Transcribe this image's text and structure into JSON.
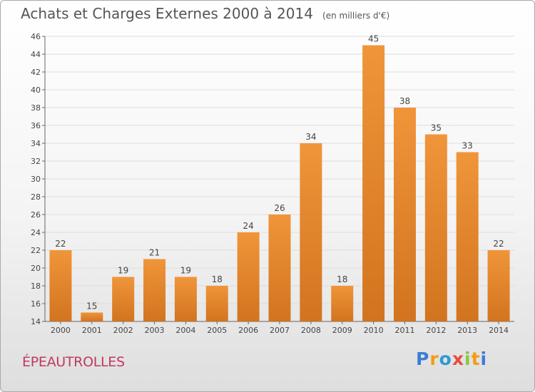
{
  "title": "Achats et Charges Externes 2000 à 2014",
  "unit_note": "(en milliers d'€)",
  "location": "ÉPEAUTROLLES",
  "brand": {
    "name": "Proxiti",
    "letters": [
      {
        "char": "P",
        "color": "#3b7dd8"
      },
      {
        "char": "r",
        "color": "#f39c12"
      },
      {
        "char": "o",
        "color": "#2e9ad0"
      },
      {
        "char": "x",
        "color": "#e74c3c"
      },
      {
        "char": "i",
        "color": "#8cc63f"
      },
      {
        "char": "t",
        "color": "#f39c12"
      },
      {
        "char": "i",
        "color": "#3b7dd8"
      }
    ]
  },
  "chart_data": {
    "type": "bar",
    "categories": [
      "2000",
      "2001",
      "2002",
      "2003",
      "2004",
      "2005",
      "2006",
      "2007",
      "2008",
      "2009",
      "2010",
      "2011",
      "2012",
      "2013",
      "2014"
    ],
    "values": [
      22,
      15,
      19,
      21,
      19,
      18,
      24,
      26,
      34,
      18,
      45,
      38,
      35,
      33,
      22
    ],
    "data_labels": [
      "22",
      "15",
      "19",
      "21",
      "19",
      "18",
      "24",
      "26",
      "34",
      "18",
      "45",
      "38",
      "35",
      "33",
      "22"
    ],
    "ylim": [
      14,
      46
    ],
    "yticks": [
      14,
      16,
      18,
      20,
      22,
      24,
      26,
      28,
      30,
      32,
      34,
      36,
      38,
      40,
      42,
      44,
      46
    ],
    "grid": true,
    "bar_color": "#f0953a",
    "bar_color_dark": "#d2741f",
    "grid_color": "#dddddd"
  }
}
